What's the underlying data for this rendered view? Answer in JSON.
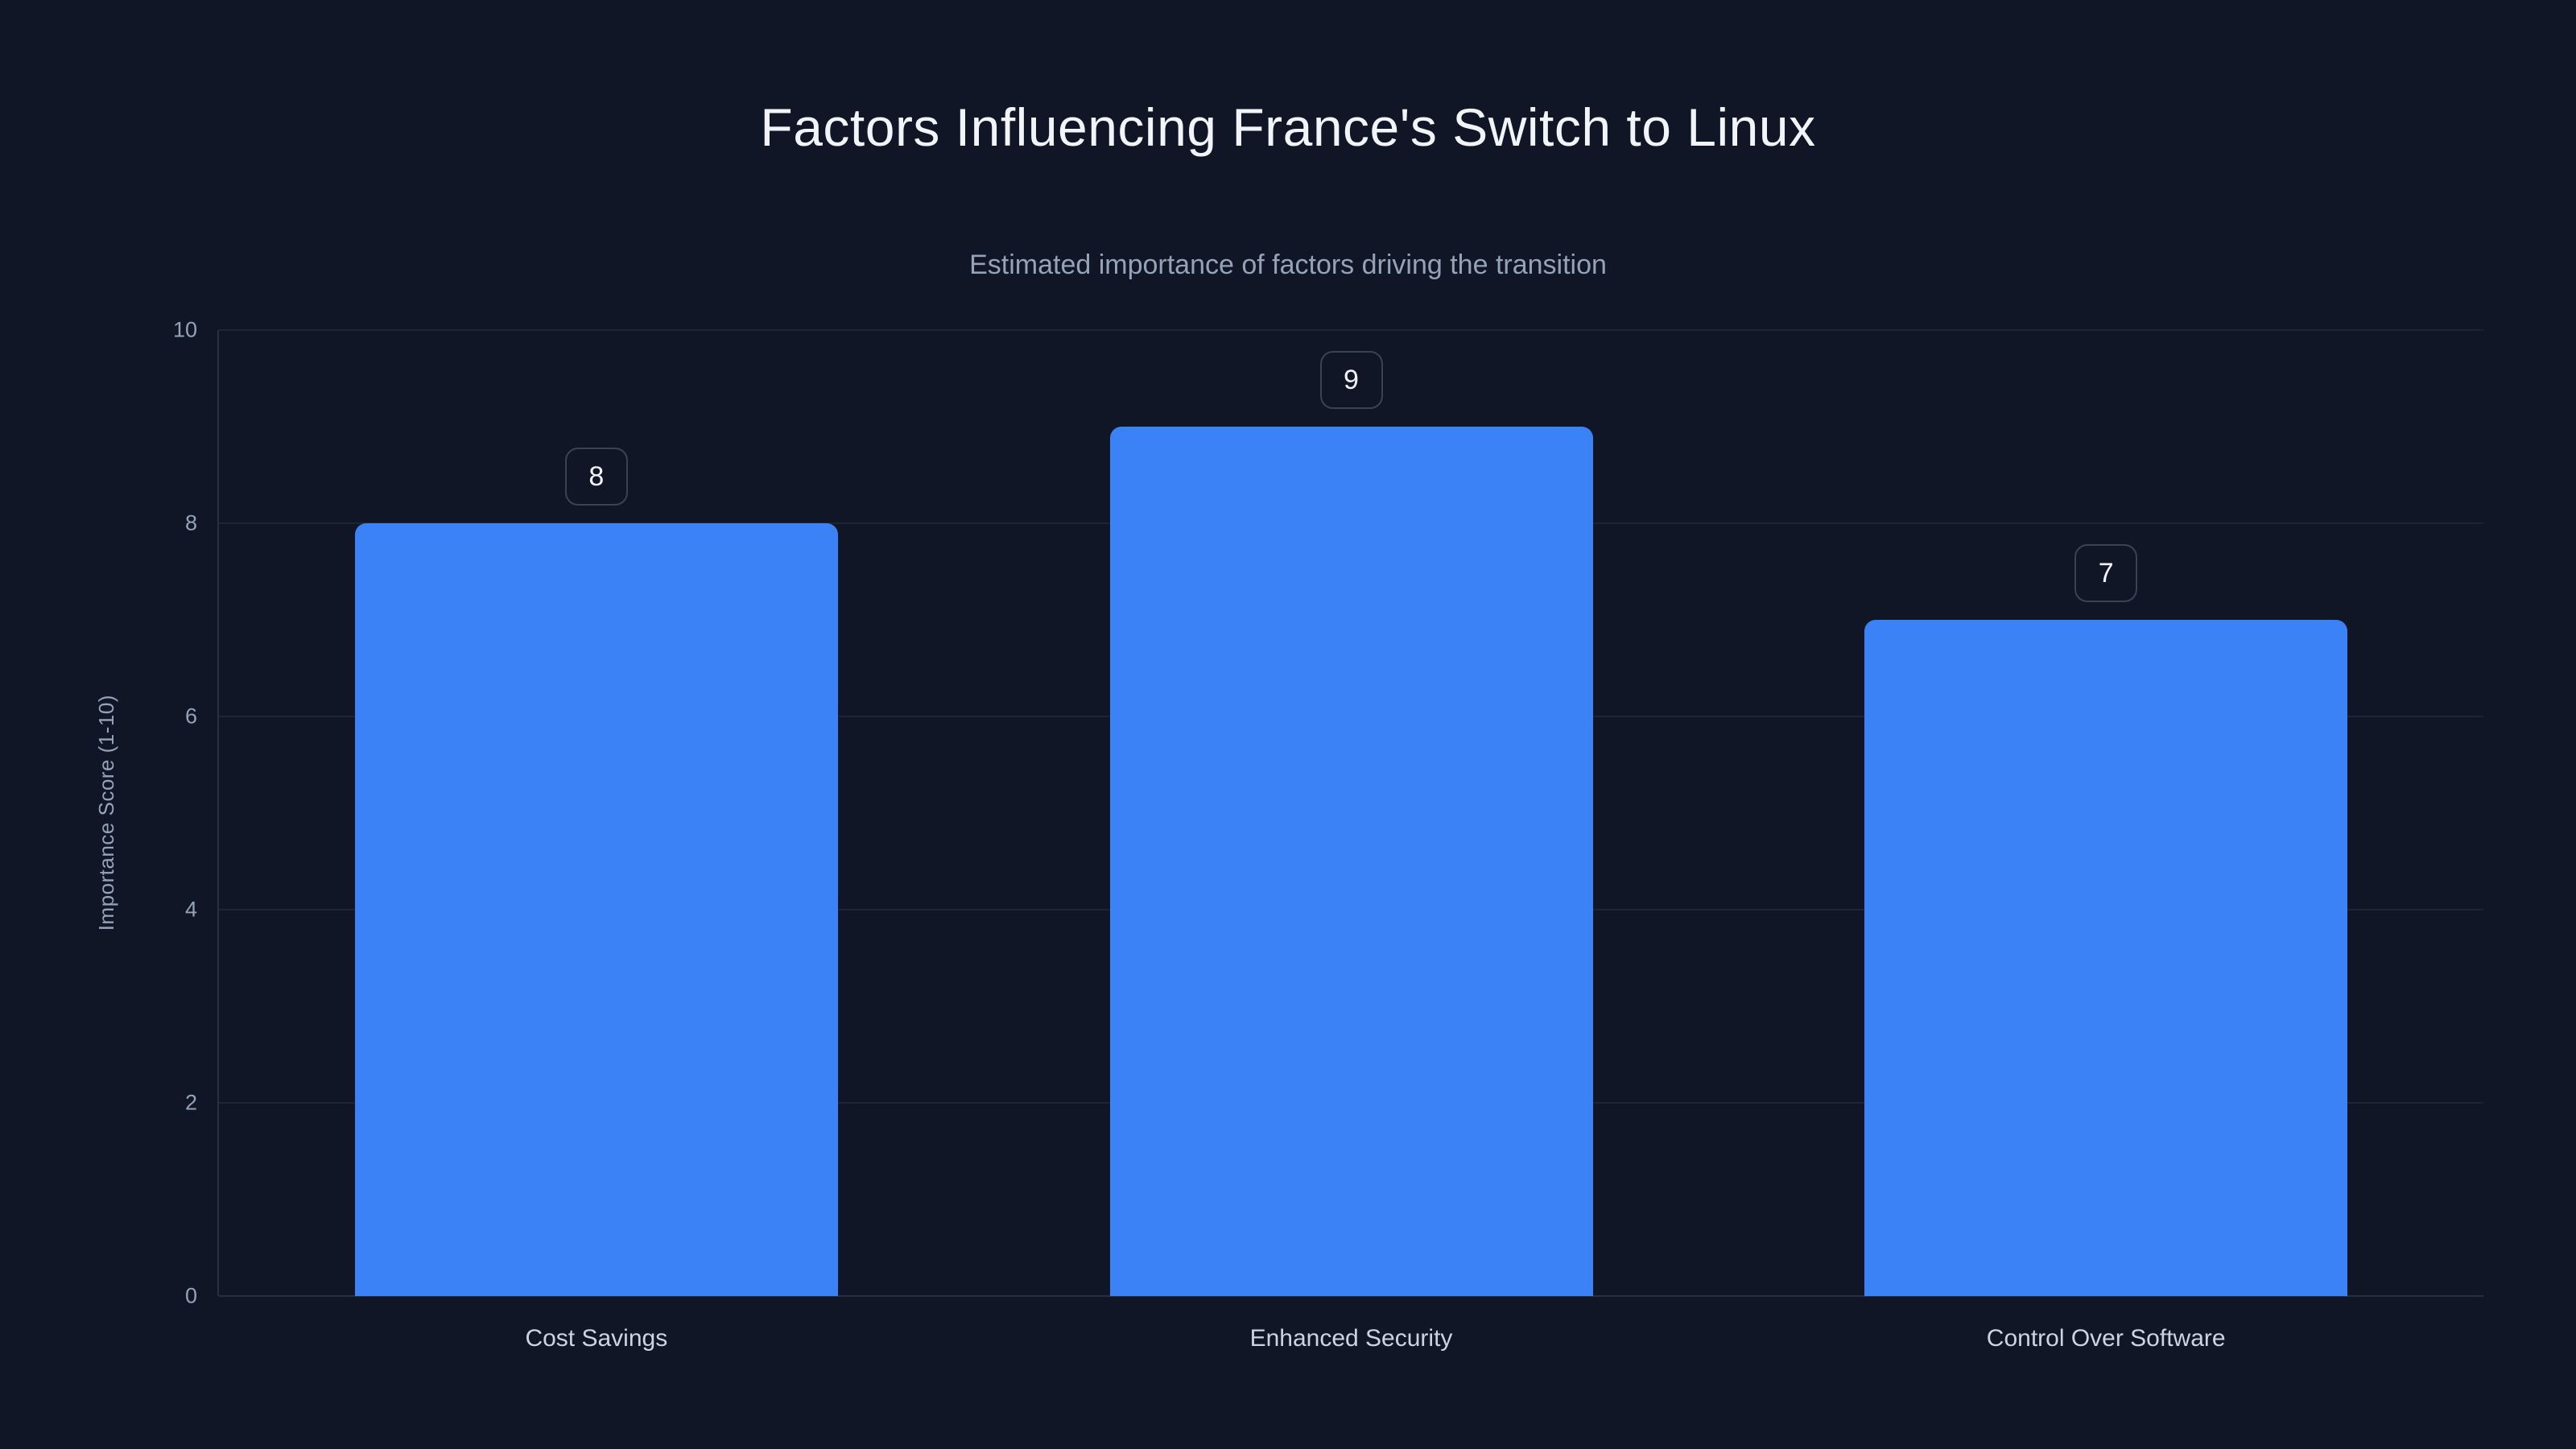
{
  "chart_data": {
    "type": "bar",
    "title": "Factors Influencing France's Switch to Linux",
    "subtitle": "Estimated importance of factors driving the transition",
    "categories": [
      "Cost Savings",
      "Enhanced Security",
      "Control Over Software"
    ],
    "values": [
      8,
      9,
      7
    ],
    "value_labels": [
      "8",
      "9",
      "7"
    ],
    "xlabel": "",
    "ylabel": "Importance Score (1-10)",
    "ylim": [
      0,
      10
    ],
    "yticks": [
      0,
      2,
      4,
      6,
      8,
      10
    ],
    "grid": "horizontal-only",
    "legend": "none",
    "colors": {
      "background": "#101626",
      "bar": "#3b82f6",
      "title": "#f1f5f9",
      "subtitle": "#94a3b8",
      "axis_text": "#94a3b8",
      "category_text": "#cbd5e1",
      "gridline": "rgba(148,163,184,0.10)",
      "axisline": "rgba(148,163,184,0.18)",
      "chip_border": "rgba(148,163,184,0.32)"
    }
  }
}
